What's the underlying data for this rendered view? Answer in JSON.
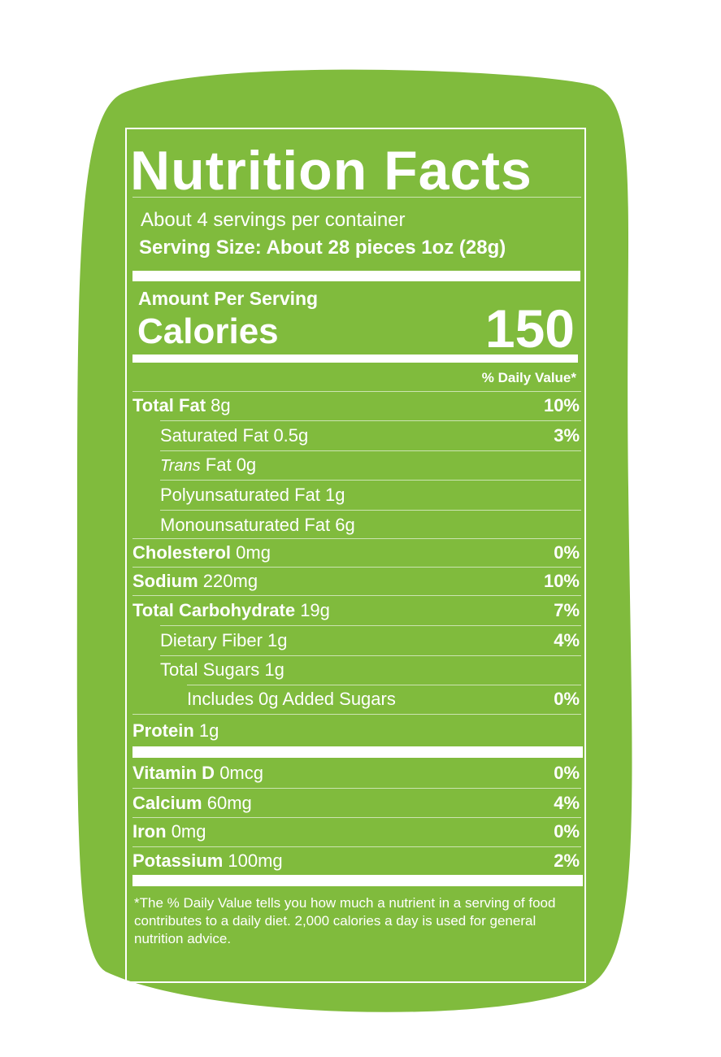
{
  "label": {
    "title": "Nutrition Facts",
    "servings": "About 4 servings per container",
    "serving_size": "Serving Size: About 28 pieces 1oz (28g)",
    "amount_per_serving": "Amount Per Serving",
    "calories_label": "Calories",
    "calories": 150,
    "dv_header": "% Daily Value*",
    "nutrients": [
      {
        "name": "Total Fat",
        "amount": "8g",
        "dv": "10%",
        "level": 0
      },
      {
        "name": "Saturated Fat",
        "amount": "0.5g",
        "dv": "3%",
        "level": 1
      },
      {
        "italic": "Trans",
        "name": "Fat",
        "amount": "0g",
        "level": 1
      },
      {
        "name": "Polyunsaturated Fat",
        "amount": "1g",
        "level": 1
      },
      {
        "name": "Monounsaturated Fat",
        "amount": "6g",
        "level": 1
      },
      {
        "name": "Cholesterol",
        "amount": "0mg",
        "dv": "0%",
        "level": 0
      },
      {
        "name": "Sodium",
        "amount": "220mg",
        "dv": "10%",
        "level": 0
      },
      {
        "name": "Total Carbohydrate",
        "amount": "19g",
        "dv": "7%",
        "level": 0
      },
      {
        "name": "Dietary Fiber",
        "amount": "1g",
        "dv": "4%",
        "level": 1
      },
      {
        "name": "Total Sugars",
        "amount": "1g",
        "level": 1
      },
      {
        "name": "Includes 0g Added Sugars",
        "dv": "0%",
        "level": 2
      },
      {
        "name": "Protein",
        "amount": "1g",
        "level": 0
      }
    ],
    "vitamins": [
      {
        "name": "Vitamin D",
        "amount": "0mcg",
        "dv": "0%"
      },
      {
        "name": "Calcium",
        "amount": "60mg",
        "dv": "4%"
      },
      {
        "name": "Iron",
        "amount": "0mg",
        "dv": "0%"
      },
      {
        "name": "Potassium",
        "amount": "100mg",
        "dv": "2%"
      }
    ],
    "footnote": "*The % Daily Value tells you how much a nutrient in a serving of food contributes to a daily diet. 2,000 calories a day is used for general nutrition advice."
  }
}
